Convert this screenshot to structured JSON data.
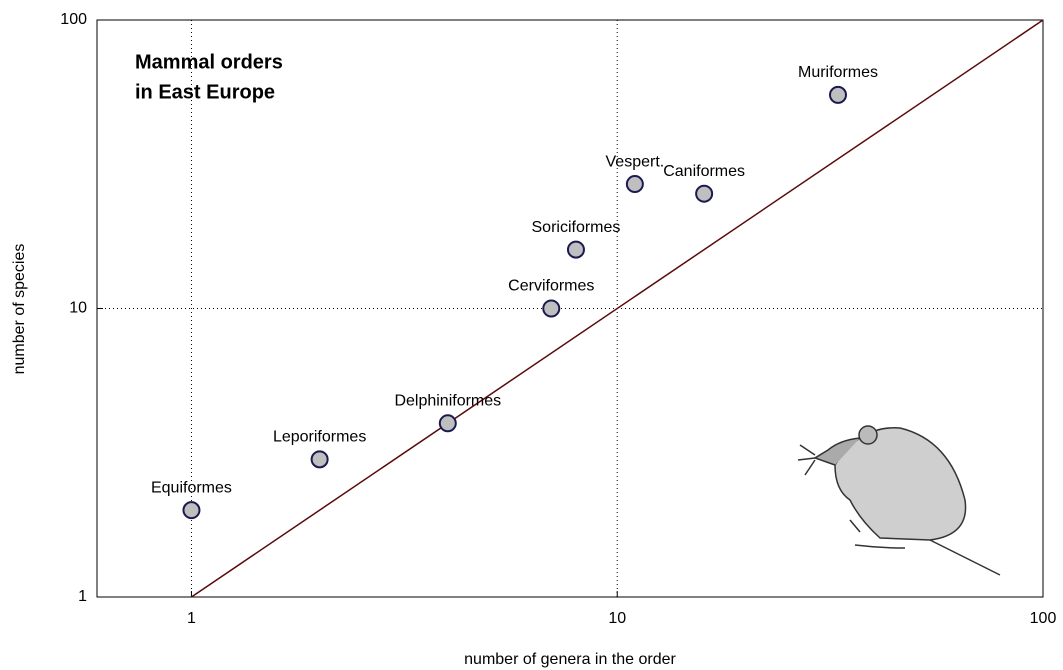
{
  "chart_data": {
    "type": "scatter",
    "title": [
      "Mammal orders",
      "in East Europe"
    ],
    "x_label": "number of genera in the order",
    "y_label": "number of species",
    "log_x": true,
    "log_y": true,
    "grid": true,
    "xlim": [
      0.6,
      100
    ],
    "ylim": [
      1,
      100
    ],
    "xticks": [
      1,
      10,
      100
    ],
    "yticks": [
      1,
      10,
      100
    ],
    "reference_line": {
      "x": [
        1,
        100
      ],
      "y": [
        1,
        100
      ],
      "color": "#5a0a0a"
    },
    "series": [
      {
        "name": null,
        "color": "#bfbfbf",
        "edge_color": "#1a1a50",
        "labels": [
          "Equiformes",
          "Leporiformes",
          "Delphiniformes",
          "Cerviformes",
          "Soriciformes",
          "Vespert.",
          "Caniformes",
          "Muriformes"
        ],
        "x": [
          1,
          2,
          4,
          7,
          8,
          11,
          16,
          33
        ],
        "values": [
          2,
          3,
          4,
          10,
          16,
          27,
          25,
          55
        ]
      }
    ]
  }
}
